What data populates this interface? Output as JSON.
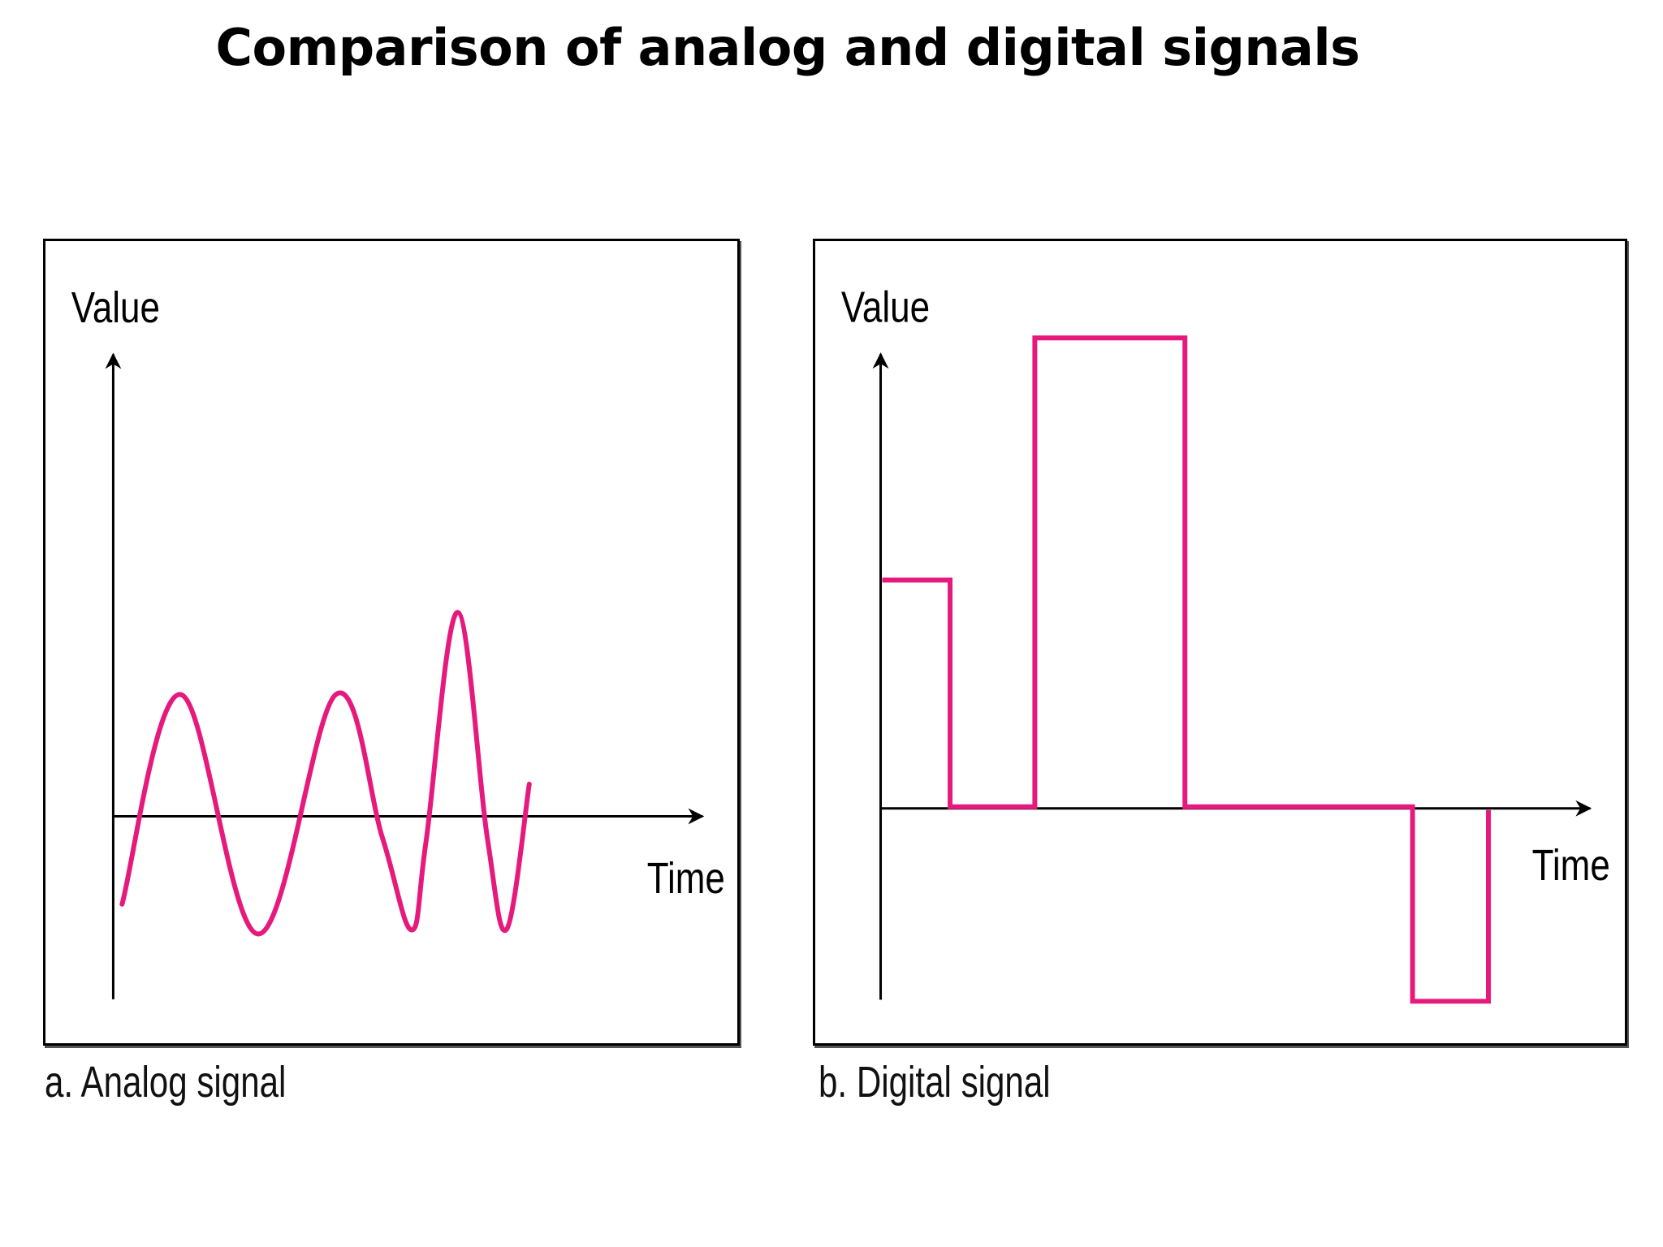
{
  "title": "Comparison of analog and digital signals",
  "colors": {
    "signal": "#e6197d",
    "axis": "#000000",
    "frame": "#000000"
  },
  "panels": [
    {
      "id": "analog",
      "caption": "a. Analog signal",
      "y_axis_label": "Value",
      "x_axis_label": "Time",
      "signal_type": "continuous"
    },
    {
      "id": "digital",
      "caption": "b. Digital signal",
      "y_axis_label": "Value",
      "x_axis_label": "Time",
      "signal_type": "discrete",
      "levels_sequence": [
        1,
        0,
        2,
        0,
        -1
      ]
    }
  ]
}
